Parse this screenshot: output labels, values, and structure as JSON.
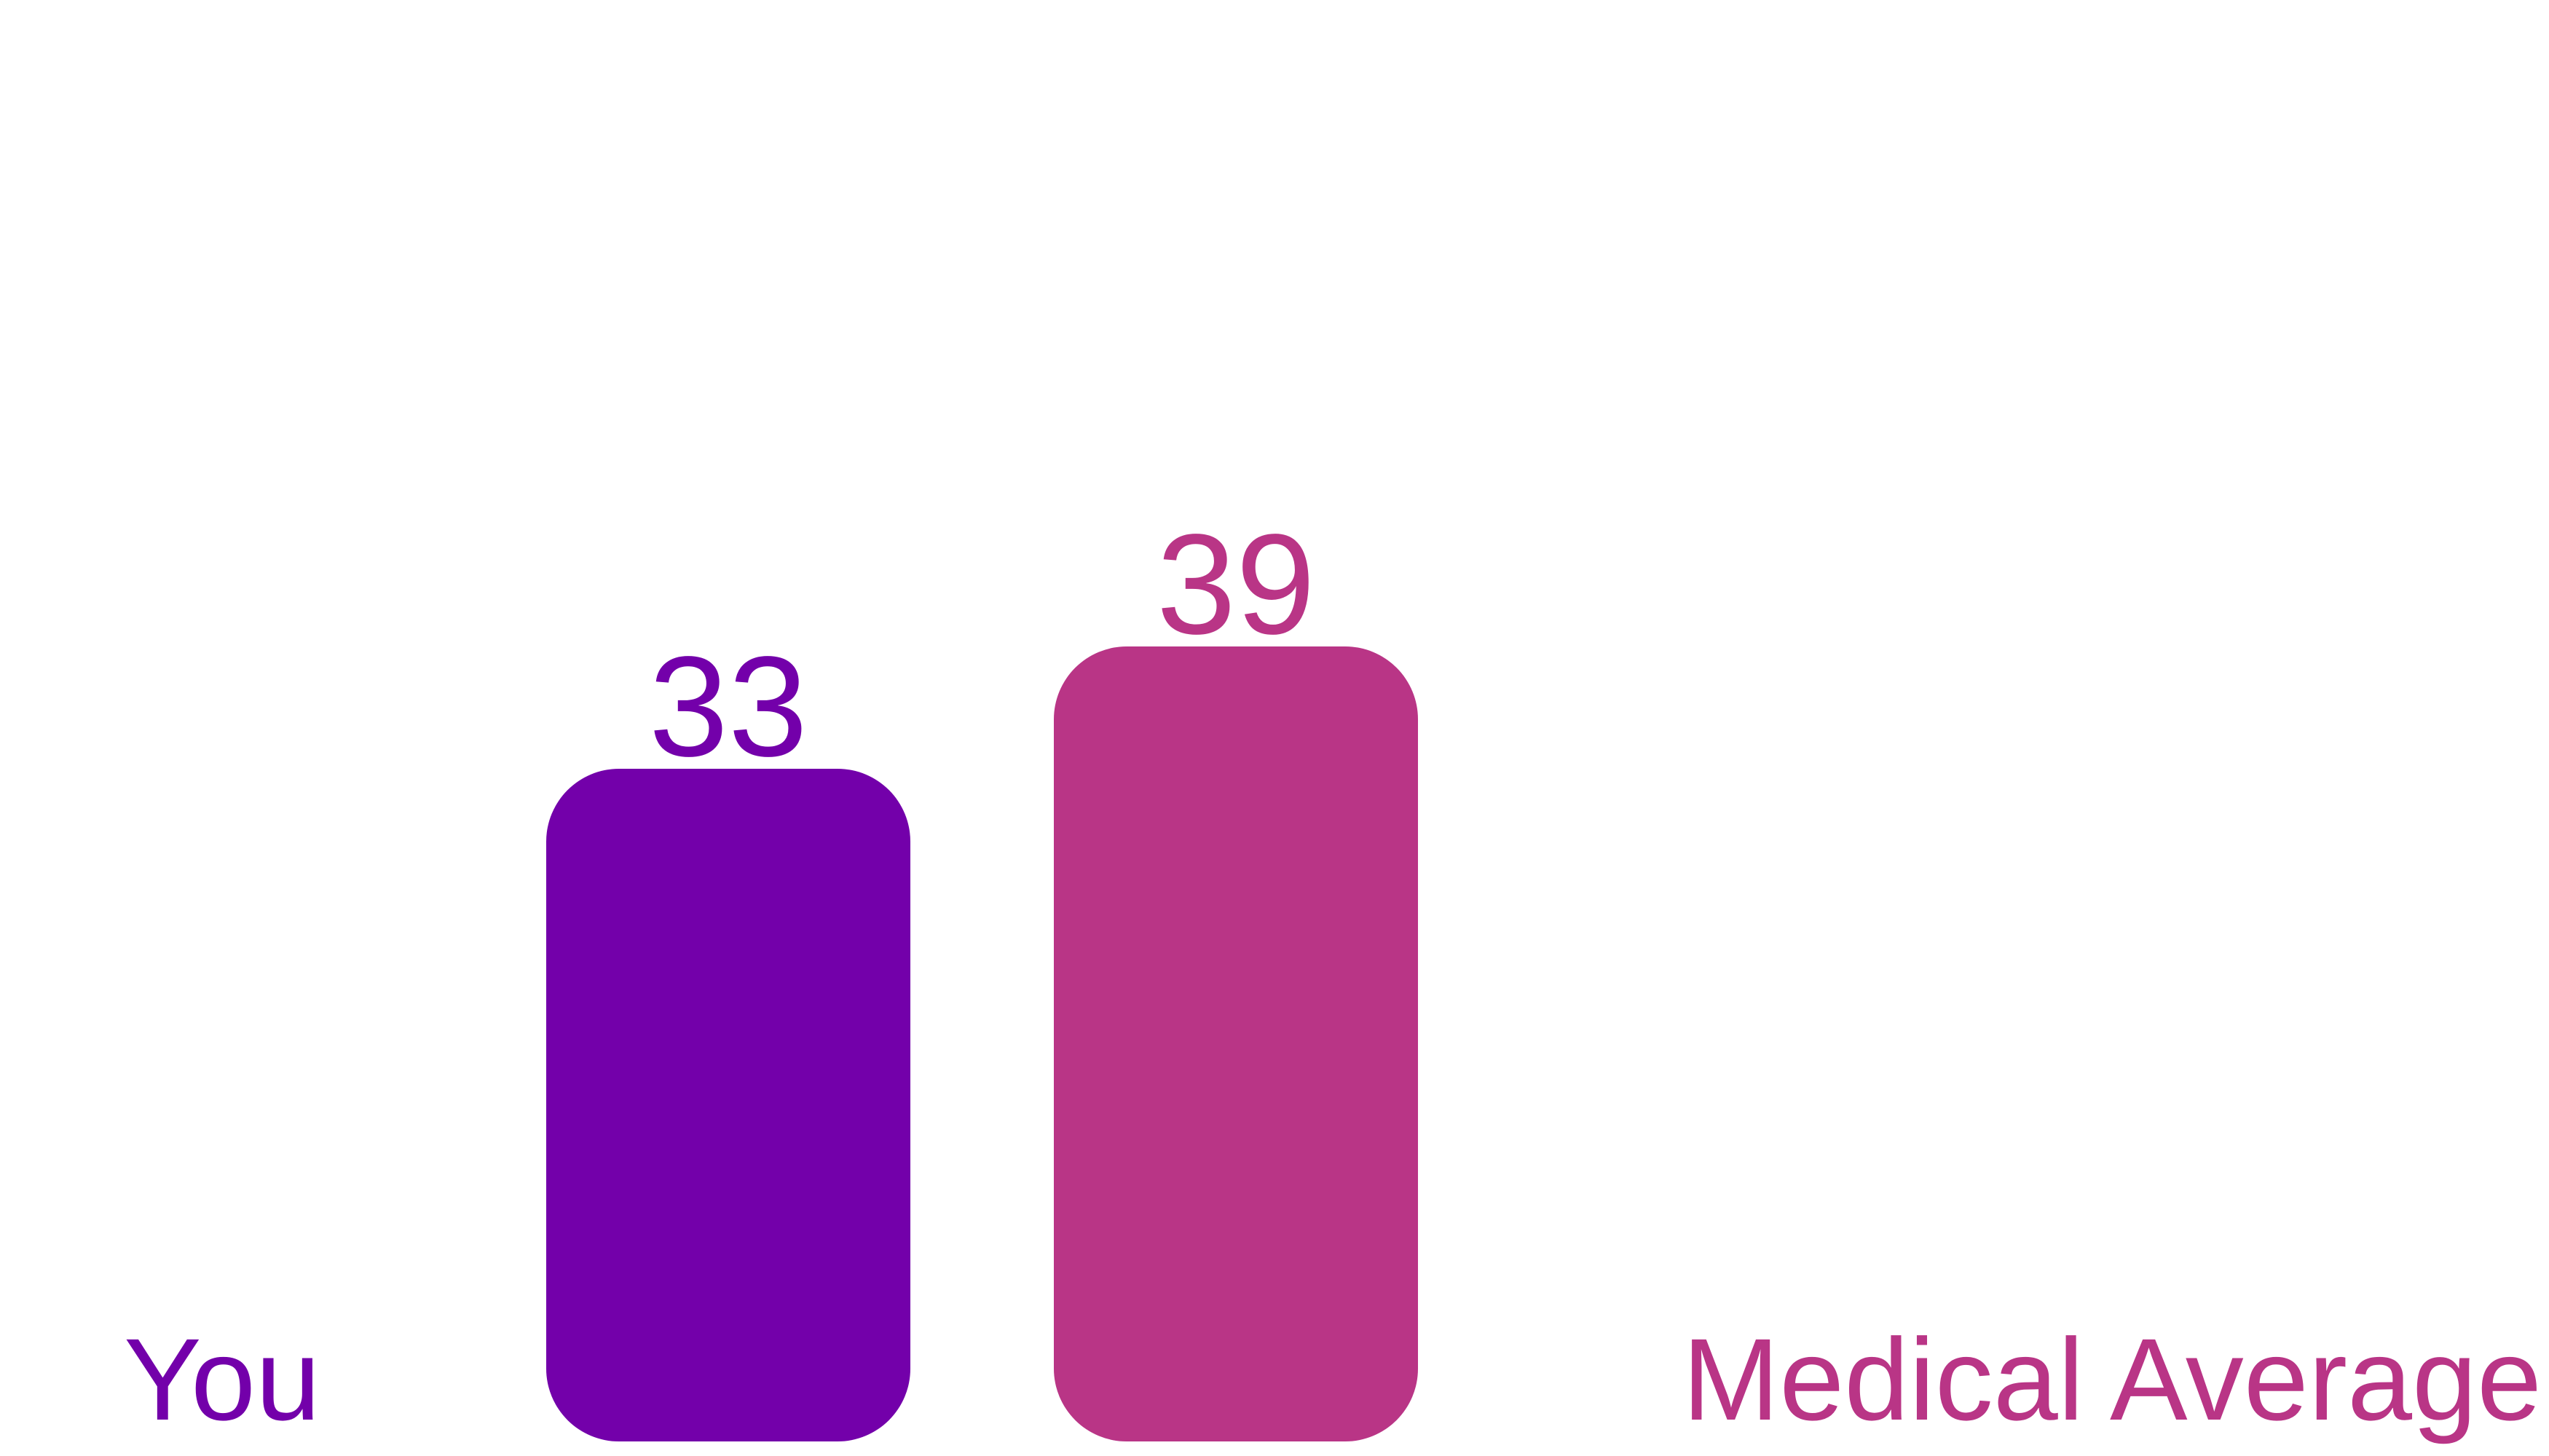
{
  "chart_data": {
    "type": "bar",
    "categories": [
      "You",
      "Medical Average"
    ],
    "values": [
      33,
      39
    ],
    "colors": [
      "#7300aa",
      "#b93586"
    ],
    "data_labels": [
      "33",
      "39"
    ],
    "title": "",
    "xlabel": "",
    "ylabel": "",
    "ylim": [
      0,
      60
    ],
    "grid": false,
    "legend": "none"
  }
}
